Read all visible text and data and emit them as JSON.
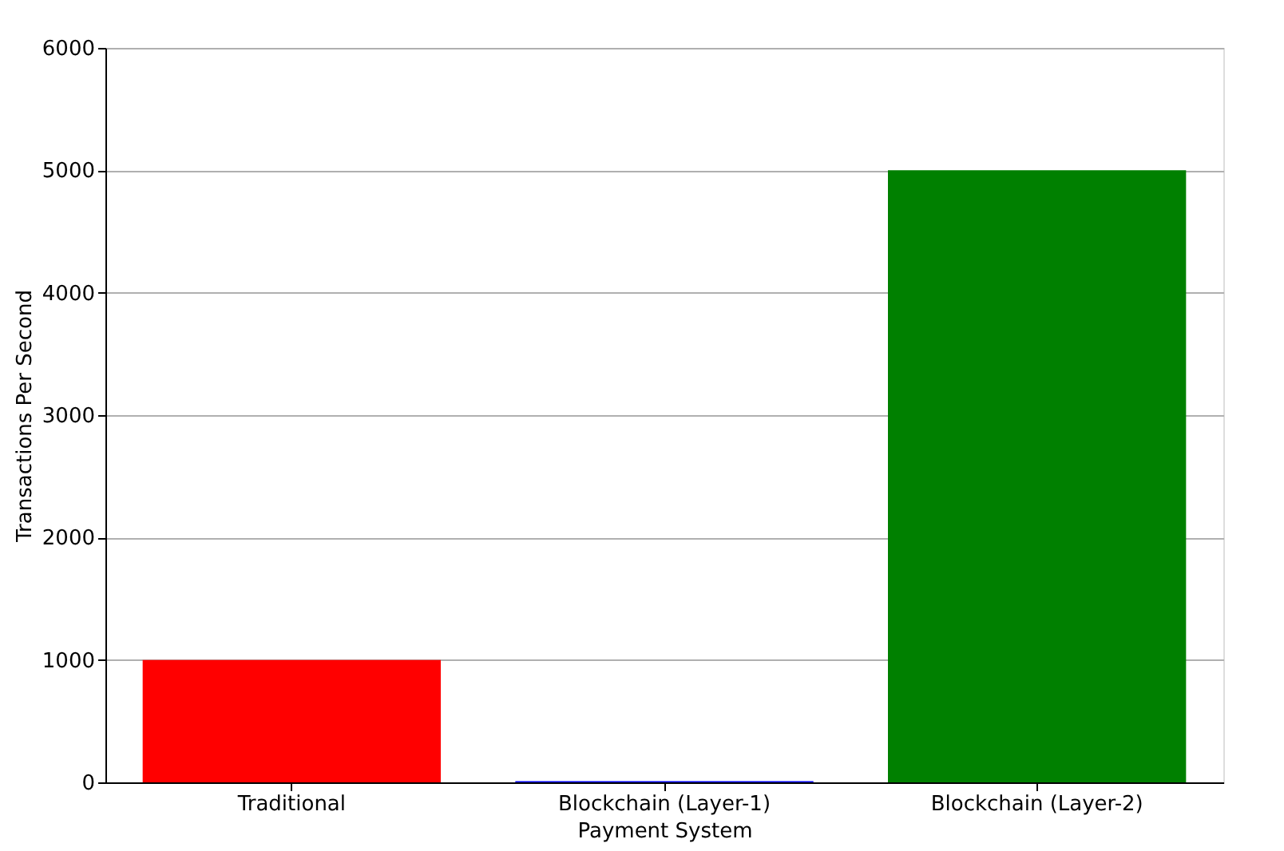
{
  "chart_data": {
    "type": "bar",
    "xlabel": "Payment System",
    "ylabel": "Transactions Per Second",
    "categories": [
      "Traditional",
      "Blockchain (Layer-1)",
      "Blockchain (Layer-2)"
    ],
    "values": [
      1000,
      10,
      5000
    ],
    "colors": [
      "#ff0000",
      "#0000ff",
      "#008000"
    ],
    "ylim": [
      0,
      6000
    ],
    "yticks": [
      0,
      1000,
      2000,
      3000,
      4000,
      5000,
      6000
    ],
    "grid": "y"
  }
}
